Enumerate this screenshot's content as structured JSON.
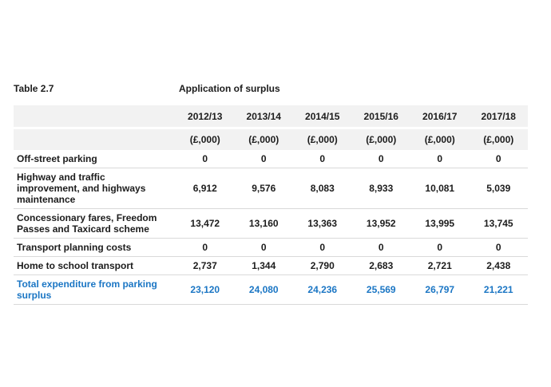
{
  "title": {
    "table_number": "Table 2.7",
    "caption": "Application of surplus"
  },
  "table": {
    "column_headers": [
      "2012/13",
      "2013/14",
      "2014/15",
      "2015/16",
      "2016/17",
      "2017/18"
    ],
    "unit_headers": [
      "(£,000)",
      "(£,000)",
      "(£,000)",
      "(£,000)",
      "(£,000)",
      "(£,000)"
    ],
    "rows": [
      {
        "label": "Off-street parking",
        "values": [
          "0",
          "0",
          "0",
          "0",
          "0",
          "0"
        ],
        "is_total": false
      },
      {
        "label": "Highway and traffic improvement, and highways maintenance",
        "values": [
          "6,912",
          "9,576",
          "8,083",
          "8,933",
          "10,081",
          "5,039"
        ],
        "is_total": false
      },
      {
        "label": "Concessionary fares, Freedom Passes and Taxicard scheme",
        "values": [
          "13,472",
          "13,160",
          "13,363",
          "13,952",
          "13,995",
          "13,745"
        ],
        "is_total": false
      },
      {
        "label": "Transport planning costs",
        "values": [
          "0",
          "0",
          "0",
          "0",
          "0",
          "0"
        ],
        "is_total": false
      },
      {
        "label": "Home to school transport",
        "values": [
          "2,737",
          "1,344",
          "2,790",
          "2,683",
          "2,721",
          "2,438"
        ],
        "is_total": false
      },
      {
        "label": "Total expenditure from parking surplus",
        "values": [
          "23,120",
          "24,080",
          "24,236",
          "25,569",
          "26,797",
          "21,221"
        ],
        "is_total": true
      }
    ],
    "colors": {
      "header_background": "#f2f2f2",
      "row_separator": "#d9d9d9",
      "total_text": "#1b76c4",
      "body_text": "#1c1c1c"
    }
  }
}
